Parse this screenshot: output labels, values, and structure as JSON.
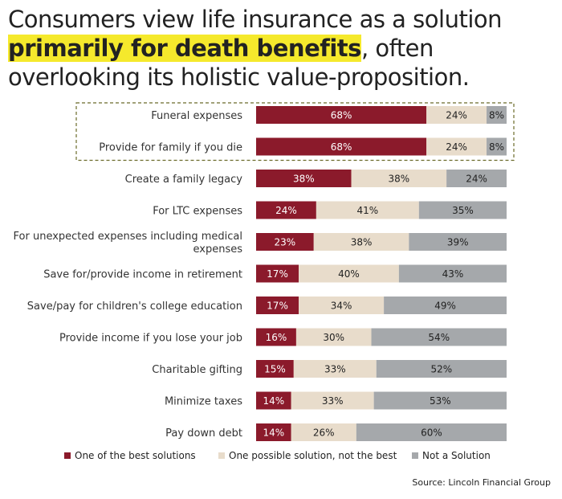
{
  "title": {
    "line1": "Consumers view life insurance as a solution",
    "highlight": "primarily for death benefits",
    "rest": ", often overlooking its holistic value-proposition."
  },
  "source": "Source: Lincoln Financial Group",
  "chart_data": {
    "type": "bar",
    "orientation": "horizontal",
    "stacked": true,
    "categories": [
      "Funeral expenses",
      "Provide for family if you die",
      "Create a family legacy",
      "For LTC expenses",
      [
        "For unexpected expenses including medical",
        "expenses"
      ],
      "Save for/provide income in retirement",
      "Save/pay for children's college education",
      "Provide income if you lose your job",
      "Charitable gifting",
      "Minimize taxes",
      "Pay down debt"
    ],
    "series": [
      {
        "name": "One of the best solutions",
        "color": "#8b1a2b",
        "label_color": "#ffffff",
        "values": [
          68,
          68,
          38,
          24,
          23,
          17,
          17,
          16,
          15,
          14,
          14
        ]
      },
      {
        "name": "One possible solution, not the best",
        "color": "#e8dccb",
        "label_color": "#222222",
        "values": [
          24,
          24,
          38,
          41,
          38,
          40,
          34,
          30,
          33,
          33,
          26
        ]
      },
      {
        "name": "Not a Solution",
        "color": "#a5a8ab",
        "label_color": "#222222",
        "values": [
          8,
          8,
          24,
          35,
          39,
          43,
          49,
          54,
          52,
          53,
          60
        ]
      }
    ],
    "value_suffix": "%",
    "xlim": [
      0,
      100
    ],
    "highlighted_categories": [
      0,
      1
    ],
    "highlight_border_color": "#6b6b2a",
    "legend_position": "bottom",
    "grid": false
  }
}
